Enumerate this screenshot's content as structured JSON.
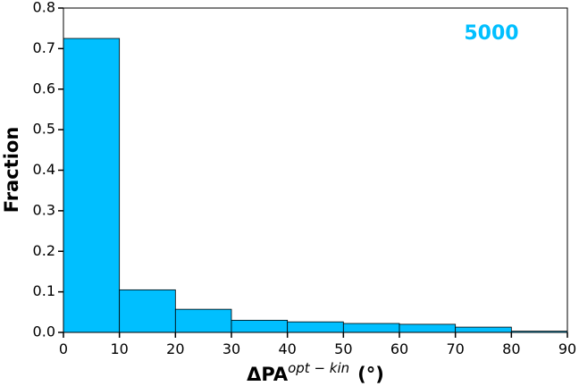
{
  "chart_data": {
    "type": "histogram",
    "bins": [
      0,
      10,
      20,
      30,
      40,
      50,
      60,
      70,
      80,
      90
    ],
    "values": [
      0.725,
      0.105,
      0.057,
      0.03,
      0.026,
      0.022,
      0.02,
      0.013,
      0.003
    ],
    "color": "#00bfff",
    "edgecolor": "#000000",
    "xlabel": {
      "base": "ΔPA",
      "sup": "opt − kin",
      "unit": "(°)"
    },
    "ylabel": "Fraction",
    "annotation": "5000",
    "annotation_color": "#00bfff",
    "xlim": [
      0,
      90
    ],
    "ylim": [
      0,
      0.8
    ],
    "xticks": [
      0,
      10,
      20,
      30,
      40,
      50,
      60,
      70,
      80,
      90
    ],
    "yticks": [
      {
        "value": 0,
        "label": "0.0"
      },
      0.1,
      0.2,
      0.3,
      0.4,
      0.5,
      0.6,
      0.7,
      0.8
    ],
    "grid": false
  }
}
